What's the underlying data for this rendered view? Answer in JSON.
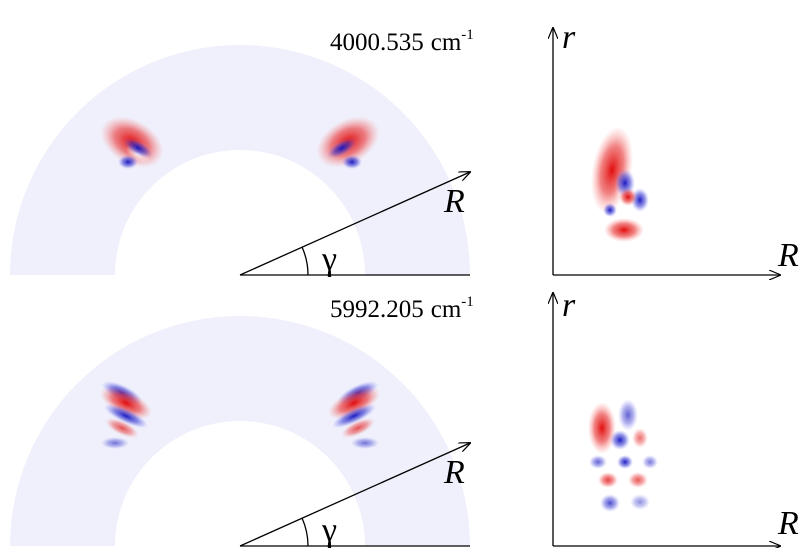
{
  "panels": [
    {
      "energy": "4000.535",
      "unit": "cm",
      "exponent": "-1",
      "polar": {
        "radial_label": "R",
        "angle_label": "γ"
      },
      "cartesian": {
        "y_label": "r",
        "x_label": "R"
      }
    },
    {
      "energy": "5992.205",
      "unit": "cm",
      "exponent": "-1",
      "polar": {
        "radial_label": "R",
        "angle_label": "γ"
      },
      "cartesian": {
        "y_label": "r",
        "x_label": "R"
      }
    }
  ]
}
